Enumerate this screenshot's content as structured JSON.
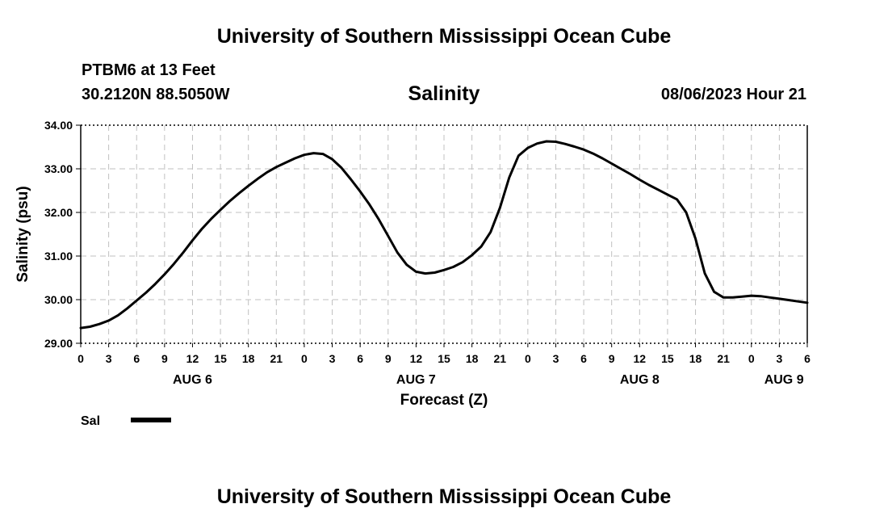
{
  "page": {
    "title_top": "University of Southern Mississippi Ocean Cube",
    "title_bottom": "University of Southern Mississippi Ocean Cube",
    "station": "PTBM6 at 13 Feet",
    "location": "30.2120N  88.5050W",
    "datetime": "08/06/2023 Hour 21"
  },
  "chart_data": {
    "type": "line",
    "title": "Salinity",
    "xlabel": "Forecast (Z)",
    "ylabel": "Salinity (psu)",
    "xlim": [
      0,
      78
    ],
    "ylim": [
      29.0,
      34.0
    ],
    "yticks": [
      "29.00",
      "30.00",
      "31.00",
      "32.00",
      "33.00",
      "34.00"
    ],
    "xtick_labels": [
      "0",
      "3",
      "6",
      "9",
      "12",
      "15",
      "18",
      "21",
      "0",
      "3",
      "6",
      "9",
      "12",
      "15",
      "18",
      "21",
      "0",
      "3",
      "6",
      "9",
      "12",
      "15",
      "18",
      "21",
      "0",
      "3",
      "6"
    ],
    "date_labels": [
      {
        "label": "AUG 6",
        "hour": 12
      },
      {
        "label": "AUG 7",
        "hour": 36
      },
      {
        "label": "AUG 8",
        "hour": 60
      },
      {
        "label": "AUG 9",
        "hour": 75.5
      }
    ],
    "grid": true,
    "legend": "bottom-left",
    "series": [
      {
        "name": "Sal",
        "color": "#000000",
        "x": [
          0,
          1,
          2,
          3,
          4,
          5,
          6,
          7,
          8,
          9,
          10,
          11,
          12,
          13,
          14,
          15,
          16,
          17,
          18,
          19,
          20,
          21,
          22,
          23,
          24,
          25,
          26,
          27,
          28,
          29,
          30,
          31,
          32,
          33,
          34,
          35,
          36,
          37,
          38,
          39,
          40,
          41,
          42,
          43,
          44,
          45,
          46,
          47,
          48,
          49,
          50,
          51,
          52,
          53,
          54,
          55,
          56,
          57,
          58,
          59,
          60,
          61,
          62,
          63,
          64,
          65,
          66,
          67,
          68,
          69,
          70,
          71,
          72,
          73,
          74,
          75,
          76,
          77,
          78
        ],
        "y": [
          29.35,
          29.38,
          29.44,
          29.52,
          29.64,
          29.8,
          29.98,
          30.16,
          30.36,
          30.58,
          30.82,
          31.08,
          31.36,
          31.62,
          31.85,
          32.06,
          32.26,
          32.44,
          32.61,
          32.77,
          32.92,
          33.04,
          33.14,
          33.24,
          33.32,
          33.36,
          33.34,
          33.22,
          33.02,
          32.76,
          32.48,
          32.18,
          31.84,
          31.46,
          31.08,
          30.8,
          30.64,
          30.6,
          30.62,
          30.68,
          30.75,
          30.86,
          31.02,
          31.22,
          31.55,
          32.1,
          32.8,
          33.3,
          33.48,
          33.58,
          33.63,
          33.62,
          33.57,
          33.51,
          33.44,
          33.35,
          33.24,
          33.12,
          33.0,
          32.88,
          32.75,
          32.63,
          32.52,
          32.41,
          32.3,
          32.0,
          31.4,
          30.6,
          30.18,
          30.05,
          30.05,
          30.07,
          30.09,
          30.08,
          30.05,
          30.02,
          29.99,
          29.96,
          29.93
        ]
      }
    ]
  }
}
